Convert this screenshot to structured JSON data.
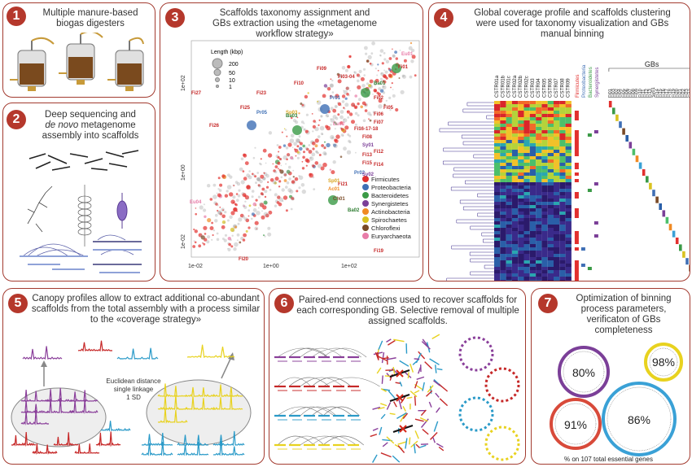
{
  "panels": [
    {
      "num": "1",
      "title": "Multiple manure-based biogas digesters"
    },
    {
      "num": "2",
      "title_a": "Deep sequencing and",
      "title_b_italic": "de novo",
      "title_b_rest": " metagenome",
      "title_c": "assembly into scaffolds"
    },
    {
      "num": "3",
      "title": "Scaffolds taxonomy assignment and GBs extraction using the «metagenome workflow strategy»"
    },
    {
      "num": "4",
      "title": "Global coverage profile and scaffolds clustering were used for taxonomy visualization and GBs manual binning"
    },
    {
      "num": "5",
      "title": "Canopy profiles allow to extract additional co-abundant scaffolds from the total assembly with a process similar to the «coverage strategy»"
    },
    {
      "num": "6",
      "title": "Paired-end connections used to recover scaffolds for each corresponding GB. Selective removal of multiple assigned scaffolds."
    },
    {
      "num": "7",
      "title": "Optimization of binning process parameters, verificaton of GBs completeness"
    }
  ],
  "scatter": {
    "size_legend_title": "Length (kbp)",
    "size_legend": [
      "200",
      "50",
      "10",
      "1"
    ],
    "x_ticks": [
      "1e-02",
      "1e+00",
      "1e+02"
    ],
    "y_ticks": [
      "1e+02",
      "1e+00",
      "1e-02"
    ],
    "legend": [
      {
        "name": "Firmicutes",
        "color": "#e2302e"
      },
      {
        "name": "Proteobacteria",
        "color": "#3f6fb5"
      },
      {
        "name": "Bacteroidetes",
        "color": "#3a9a46"
      },
      {
        "name": "Synergistetes",
        "color": "#7b3f98"
      },
      {
        "name": "Actinobacteria",
        "color": "#f08a24"
      },
      {
        "name": "Spirochaetes",
        "color": "#d9c21f"
      },
      {
        "name": "Chloroflexi",
        "color": "#7a4a26"
      },
      {
        "name": "Euryarchaeota",
        "color": "#e87ca8"
      }
    ],
    "labels": [
      {
        "t": "Eu01",
        "c": "#e87ca8"
      },
      {
        "t": "Fi01",
        "c": "#c62828"
      },
      {
        "t": "Fi09",
        "c": "#c62828"
      },
      {
        "t": "Fi03-04",
        "c": "#c62828"
      },
      {
        "t": "Ba01",
        "c": "#2e7d32"
      },
      {
        "t": "Fi10",
        "c": "#c62828"
      },
      {
        "t": "Pr01",
        "c": "#3f6fb5"
      },
      {
        "t": "Fi02",
        "c": "#c62828"
      },
      {
        "t": "Fi27",
        "c": "#c62828"
      },
      {
        "t": "Fi23",
        "c": "#c62828"
      },
      {
        "t": "Fi05",
        "c": "#c62828"
      },
      {
        "t": "Fi25",
        "c": "#c62828"
      },
      {
        "t": "Pr05",
        "c": "#3f6fb5"
      },
      {
        "t": "Sp03",
        "c": "#d9a41f"
      },
      {
        "t": "Ba03",
        "c": "#2e7d32"
      },
      {
        "t": "Fi06",
        "c": "#c62828"
      },
      {
        "t": "Fi07",
        "c": "#c62828"
      },
      {
        "t": "Eu02",
        "c": "#e87ca8"
      },
      {
        "t": "Fi16-17-18",
        "c": "#c62828"
      },
      {
        "t": "Fi26",
        "c": "#c62828"
      },
      {
        "t": "Fi08",
        "c": "#c62828"
      },
      {
        "t": "Sy01",
        "c": "#7b3f98"
      },
      {
        "t": "Fi12",
        "c": "#c62828"
      },
      {
        "t": "Fi13",
        "c": "#c62828"
      },
      {
        "t": "Fi15",
        "c": "#c62828"
      },
      {
        "t": "Fi14",
        "c": "#c62828"
      },
      {
        "t": "Pr02",
        "c": "#3f6fb5"
      },
      {
        "t": "Sy02",
        "c": "#7b3f98"
      },
      {
        "t": "Fi21",
        "c": "#c62828"
      },
      {
        "t": "Sp01",
        "c": "#d9a41f"
      },
      {
        "t": "Ac01",
        "c": "#f08a24"
      },
      {
        "t": "Eu04",
        "c": "#e87ca8"
      },
      {
        "t": "Ch01",
        "c": "#7a4a26"
      },
      {
        "t": "Ba02",
        "c": "#2e7d32"
      },
      {
        "t": "Fi20",
        "c": "#c62828"
      },
      {
        "t": "Fi19",
        "c": "#c62828"
      }
    ]
  },
  "heatmap": {
    "samples": [
      "CSTR01a",
      "CSTR01b",
      "CSTR01c",
      "CSTR02a",
      "CSTR02b",
      "CSTR02c",
      "CSTR03",
      "CSTR04",
      "CSTR05",
      "CSTR06",
      "CSTR07",
      "CSTR08",
      "CSTR09"
    ],
    "taxa": [
      {
        "name": "Firmicutes",
        "color": "#e2302e"
      },
      {
        "name": "Proteobacteria",
        "color": "#3f6fb5"
      },
      {
        "name": "Bacteroidetes",
        "color": "#3a9a46"
      },
      {
        "name": "Synergistetes",
        "color": "#7b3f98"
      }
    ],
    "gbs_label": "GBs",
    "gbs": [
      "Fi01",
      "Fi03",
      "Fi02",
      "Fi04",
      "Fi05",
      "Fi06",
      "Fi07",
      "Fi08",
      "Fi09",
      "Fi10",
      "Fi11",
      "Fi12",
      "Fi13",
      "Sy01",
      "Fi14",
      "Fi15",
      "Fi16",
      "Fi17",
      "Fi18",
      "Fi19",
      "Fi20",
      "Fi21",
      "Fi22",
      "Fi23",
      "Fi12",
      "Fi13"
    ]
  },
  "panel5": {
    "cluster_text": [
      "Euclidean distance",
      "single linkage",
      "1 SD"
    ]
  },
  "panel7": {
    "circles": [
      {
        "pct": "80%",
        "color": "#7b3f98"
      },
      {
        "pct": "98%",
        "color": "#e8d21f"
      },
      {
        "pct": "91%",
        "color": "#d84a3a"
      },
      {
        "pct": "86%",
        "color": "#3aa1d6"
      }
    ],
    "caption": "% on 107 total essential genes"
  }
}
